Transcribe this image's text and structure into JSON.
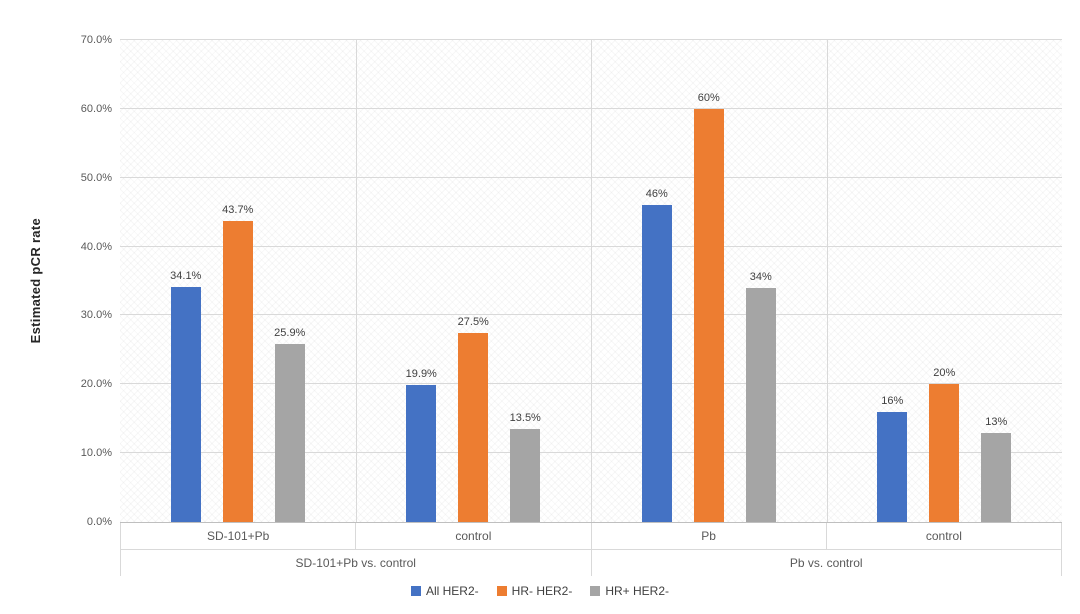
{
  "chart_data": {
    "type": "bar",
    "title": "",
    "xlabel": "",
    "ylabel": "Estimated pCR rate",
    "ylim": [
      0,
      70
    ],
    "ytick_step": 10,
    "ytick_labels": [
      "0.0%",
      "10.0%",
      "20.0%",
      "30.0%",
      "40.0%",
      "50.0%",
      "60.0%",
      "70.0%"
    ],
    "grid": "horizontal",
    "legend_position": "bottom",
    "groups": [
      {
        "label": "SD-101+Pb vs. control",
        "categories": [
          "SD-101+Pb",
          "control"
        ]
      },
      {
        "label": "Pb vs. control",
        "categories": [
          "Pb",
          "control"
        ]
      }
    ],
    "series": [
      {
        "name": "All HER2-",
        "color": "#4472C4",
        "values": [
          34.1,
          19.9,
          46,
          16
        ],
        "labels": [
          "34.1%",
          "19.9%",
          "46%",
          "16%"
        ]
      },
      {
        "name": "HR- HER2-",
        "color": "#ED7D31",
        "values": [
          43.7,
          27.5,
          60,
          20
        ],
        "labels": [
          "43.7%",
          "27.5%",
          "60%",
          "20%"
        ]
      },
      {
        "name": "HR+ HER2-",
        "color": "#A5A5A5",
        "values": [
          25.9,
          13.5,
          34,
          13
        ],
        "labels": [
          "25.9%",
          "13.5%",
          "34%",
          "13%"
        ]
      }
    ]
  }
}
